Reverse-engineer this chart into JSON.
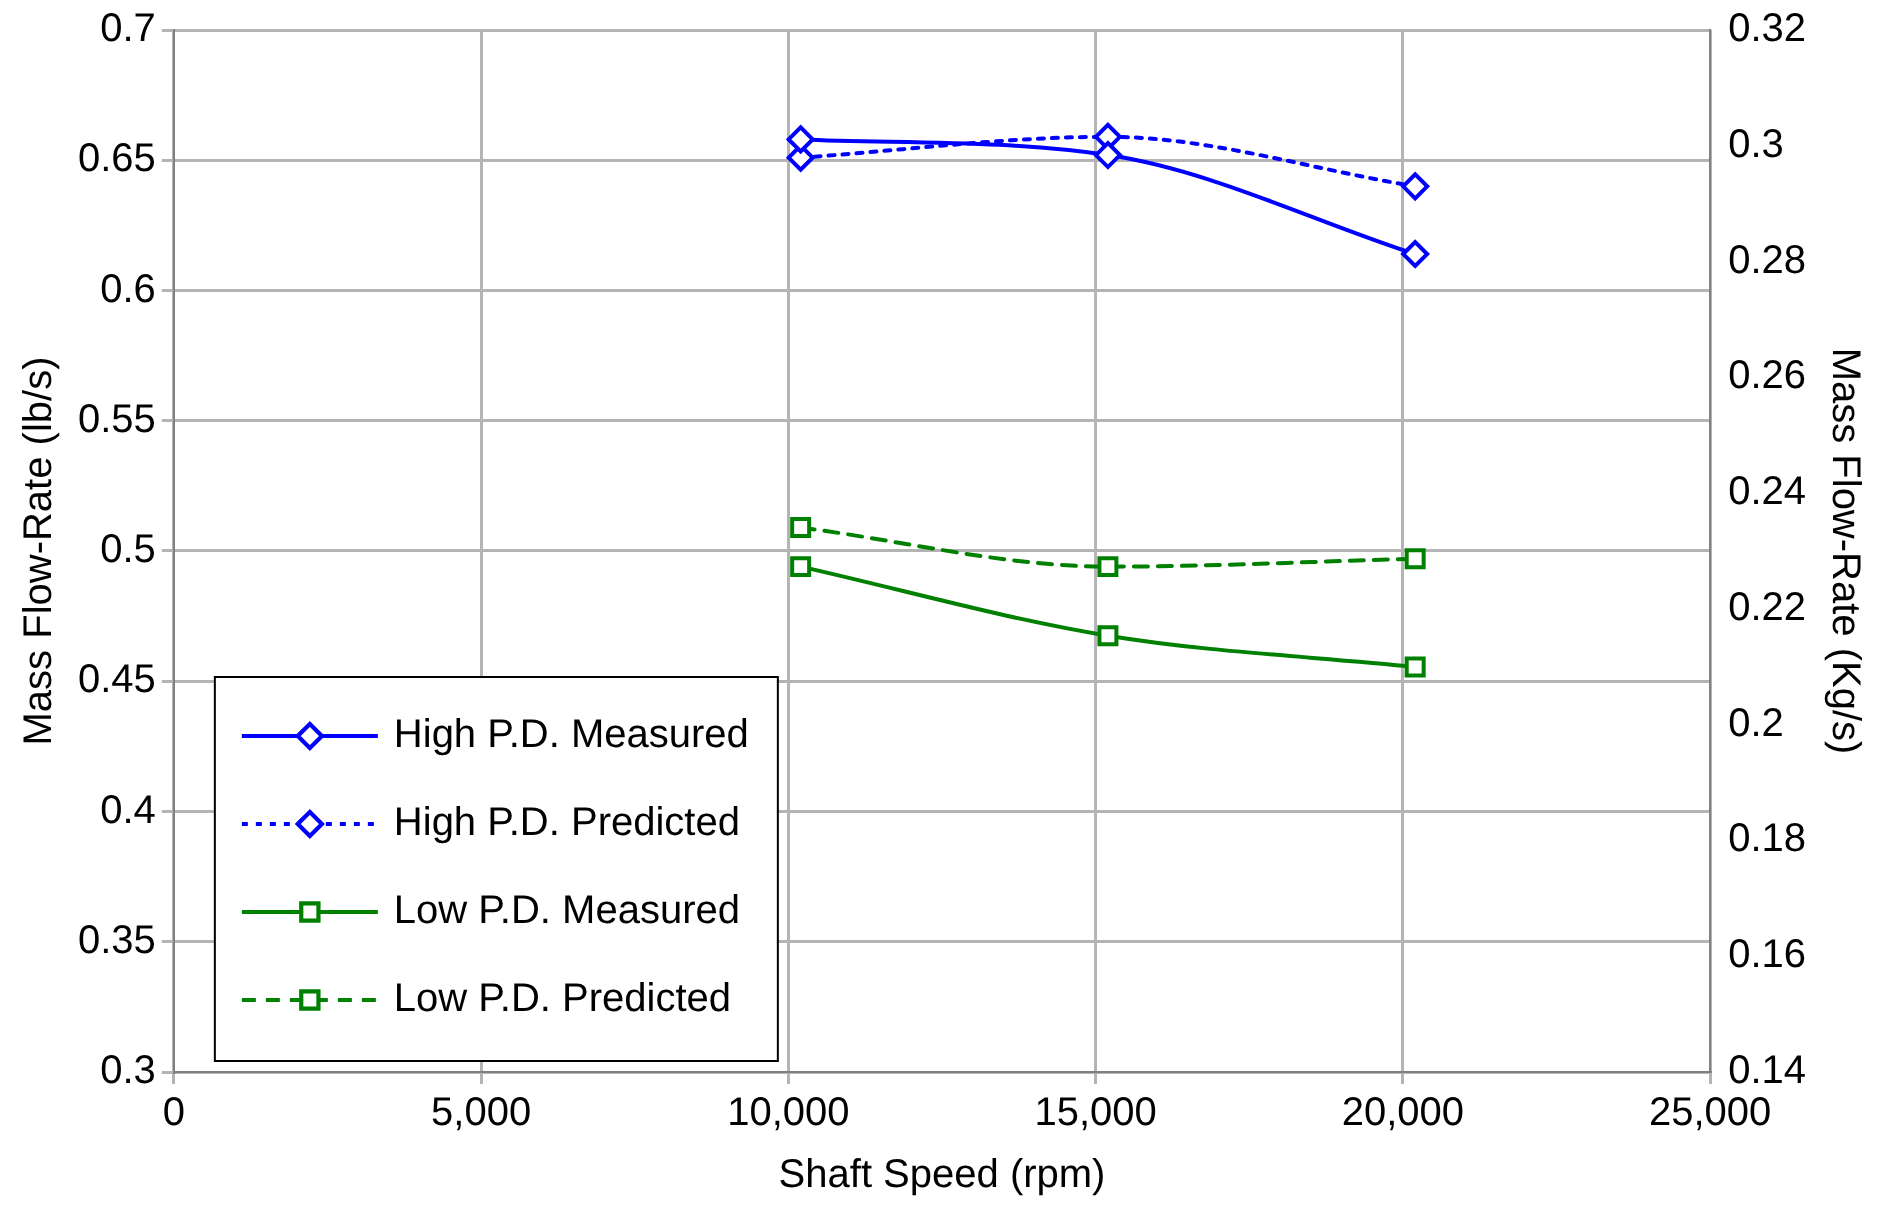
{
  "chart_data": {
    "type": "line",
    "xlabel": "Shaft Speed (rpm)",
    "ylabel": "Mass Flow-Rate (lb/s)",
    "y2label": "Mass Flow-Rate (Kg/s)",
    "xlim": [
      0,
      25000
    ],
    "xticks": [
      {
        "value": 0,
        "label": "0"
      },
      {
        "value": 5000,
        "label": "5,000"
      },
      {
        "value": 10000,
        "label": "10,000"
      },
      {
        "value": 15000,
        "label": "15,000"
      },
      {
        "value": 20000,
        "label": "20,000"
      },
      {
        "value": 25000,
        "label": "25,000"
      }
    ],
    "ylim": [
      0.3,
      0.7
    ],
    "yticks": [
      0.3,
      0.35,
      0.4,
      0.45,
      0.5,
      0.55,
      0.6,
      0.65,
      0.7
    ],
    "y2lim": [
      0.14,
      0.32
    ],
    "y2ticks": [
      0.14,
      0.16,
      0.18,
      0.2,
      0.22,
      0.24,
      0.26,
      0.28,
      0.3,
      0.32
    ],
    "x": [
      10200,
      15200,
      20200
    ],
    "series": [
      {
        "name": "High P.D. Measured",
        "color": "#0000ff",
        "marker": "diamond",
        "line_style": "solid",
        "values": [
          0.658,
          0.652,
          0.614
        ]
      },
      {
        "name": "High P.D. Predicted",
        "color": "#0000ff",
        "marker": "diamond",
        "line_style": "dotted",
        "values": [
          0.651,
          0.659,
          0.64
        ]
      },
      {
        "name": "Low P.D. Measured",
        "color": "#008000",
        "marker": "square",
        "line_style": "solid",
        "values": [
          0.494,
          0.4675,
          0.4555
        ]
      },
      {
        "name": "Low P.D. Predicted",
        "color": "#008000",
        "marker": "square",
        "line_style": "dashed",
        "values": [
          0.509,
          0.494,
          0.497
        ]
      }
    ],
    "grid": true,
    "legend": "bottom left"
  }
}
